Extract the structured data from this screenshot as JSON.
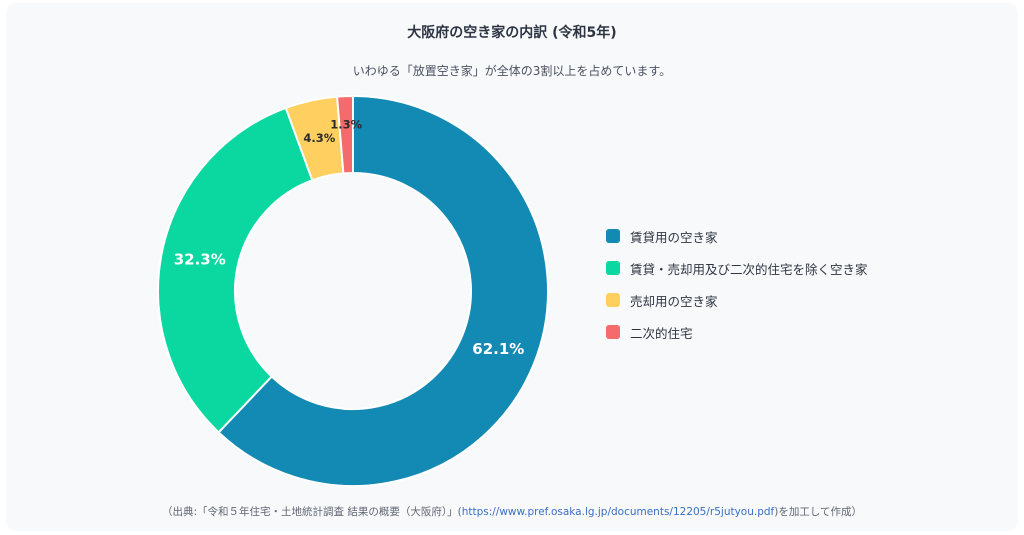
{
  "chart_data": {
    "type": "pie",
    "title": "大阪府の空き家の内訳 (令和5年)",
    "subtitle": "いわゆる「放置空き家」が全体の3割以上を占めています。",
    "categories": [
      "賃貸用の空き家",
      "賃貸・売却用及び二次的住宅を除く空き家",
      "売却用の空き家",
      "二次的住宅"
    ],
    "values": [
      62.1,
      32.3,
      4.3,
      1.3
    ],
    "labels": [
      "62.1%",
      "32.3%",
      "4.3%",
      "1.3%"
    ],
    "colors": [
      "#138ab4",
      "#0ad8a0",
      "#ffcf5f",
      "#f56a6c"
    ],
    "label_colors": [
      "#ffffff",
      "#ffffff",
      "#2b2b2b",
      "#2b2b2b"
    ],
    "donut": true,
    "legend_position": "right"
  },
  "source": {
    "prefix": "（出典:「令和５年住宅・土地統計調査 結果の概要（大阪府）」(",
    "link": "https://www.pref.osaka.lg.jp/documents/12205/r5jutyou.pdf",
    "suffix": ")を加工して作成）"
  }
}
